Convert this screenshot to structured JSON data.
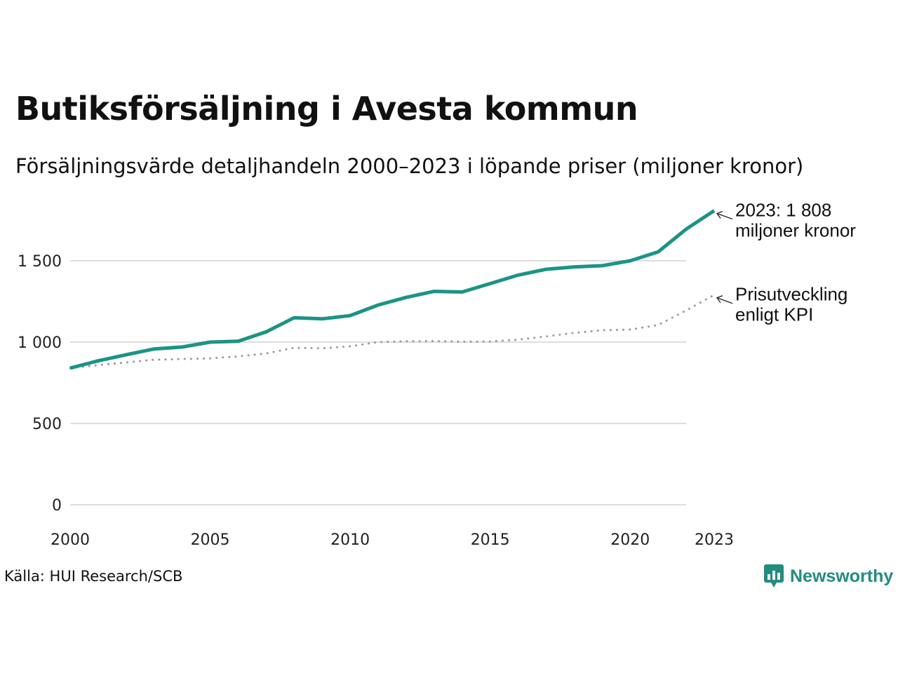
{
  "header": {
    "title": "Butiksförsäljning i Avesta kommun",
    "subtitle": "Försäljningsvärde detaljhandeln 2000–2023 i löpande priser (miljoner kronor)"
  },
  "footer": {
    "source": "Källa: HUI Research/SCB",
    "brand": "Newsworthy"
  },
  "colors": {
    "sales_line": "#1a9484",
    "kpi_line": "#999999",
    "grid": "#dddddd",
    "brand": "#1e8f7e"
  },
  "chart_data": {
    "type": "line",
    "title": "Butiksförsäljning i Avesta kommun",
    "xlabel": "",
    "ylabel": "",
    "xlim": [
      2000,
      2023
    ],
    "ylim": [
      0,
      1808
    ],
    "grid": true,
    "x": [
      2000,
      2001,
      2002,
      2003,
      2004,
      2005,
      2006,
      2007,
      2008,
      2009,
      2010,
      2011,
      2012,
      2013,
      2014,
      2015,
      2016,
      2017,
      2018,
      2019,
      2020,
      2021,
      2022,
      2023
    ],
    "x_ticks": [
      2000,
      2005,
      2010,
      2015,
      2020,
      2023
    ],
    "y_ticks": [
      0,
      500,
      1000,
      1500
    ],
    "y_tick_labels": [
      "0",
      "500",
      "1 000",
      "1 500"
    ],
    "series": [
      {
        "name": "Butiksförsäljning",
        "style": "solid",
        "values": [
          840,
          885,
          922,
          958,
          970,
          1000,
          1005,
          1063,
          1150,
          1143,
          1163,
          1228,
          1275,
          1312,
          1308,
          1360,
          1412,
          1448,
          1462,
          1470,
          1500,
          1555,
          1695,
          1808
        ]
      },
      {
        "name": "Prisutveckling enligt KPI",
        "style": "dotted",
        "values": [
          840,
          858,
          875,
          892,
          896,
          900,
          912,
          930,
          965,
          962,
          974,
          1000,
          1005,
          1006,
          1003,
          1004,
          1015,
          1035,
          1057,
          1073,
          1077,
          1105,
          1195,
          1290
        ]
      }
    ],
    "annotations": [
      {
        "series": 0,
        "lines": [
          "2023: 1 808",
          "miljoner kronor"
        ]
      },
      {
        "series": 1,
        "lines": [
          "Prisutveckling",
          "enligt KPI"
        ]
      }
    ]
  }
}
